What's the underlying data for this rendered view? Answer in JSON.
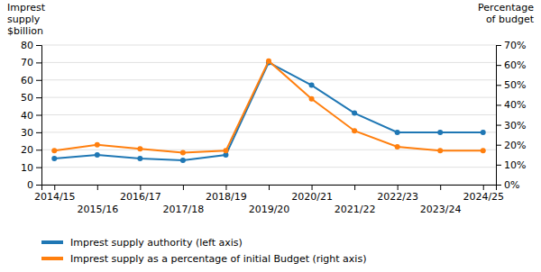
{
  "chart_data": {
    "type": "line",
    "categories": [
      "2014/15",
      "2015/16",
      "2016/17",
      "2017/18",
      "2018/19",
      "2019/20",
      "2020/21",
      "2021/22",
      "2022/23",
      "2023/24",
      "2024/25"
    ],
    "series": [
      {
        "name": "Imprest supply authority (left axis)",
        "values": [
          15,
          17,
          15,
          14,
          17,
          70,
          57,
          41,
          30,
          30,
          30
        ]
      },
      {
        "name": "Imprest supply as a percentage of initial Budget (right axis)",
        "values": [
          17,
          20,
          18,
          16,
          17,
          62,
          43,
          27,
          19,
          17,
          17
        ],
        "axis": "y2"
      }
    ],
    "ylabel": "Imprest\nsupply\n$billion",
    "y2label": "Percentage\nof budget",
    "ylim": [
      0,
      80
    ],
    "yticks": [
      0,
      10,
      20,
      30,
      40,
      50,
      60,
      70,
      80
    ],
    "y2lim": [
      0,
      70
    ],
    "y2ticks": [
      {
        "value": 0,
        "label": "0%"
      },
      {
        "value": 10,
        "label": "10%"
      },
      {
        "value": 20,
        "label": "20%"
      },
      {
        "value": 30,
        "label": "30%"
      },
      {
        "value": 40,
        "label": "40%"
      },
      {
        "value": 50,
        "label": "50%"
      },
      {
        "value": 60,
        "label": "60%"
      },
      {
        "value": 70,
        "label": "70%"
      }
    ],
    "grid": true,
    "marker": "circle",
    "legend": "bottom-left"
  }
}
